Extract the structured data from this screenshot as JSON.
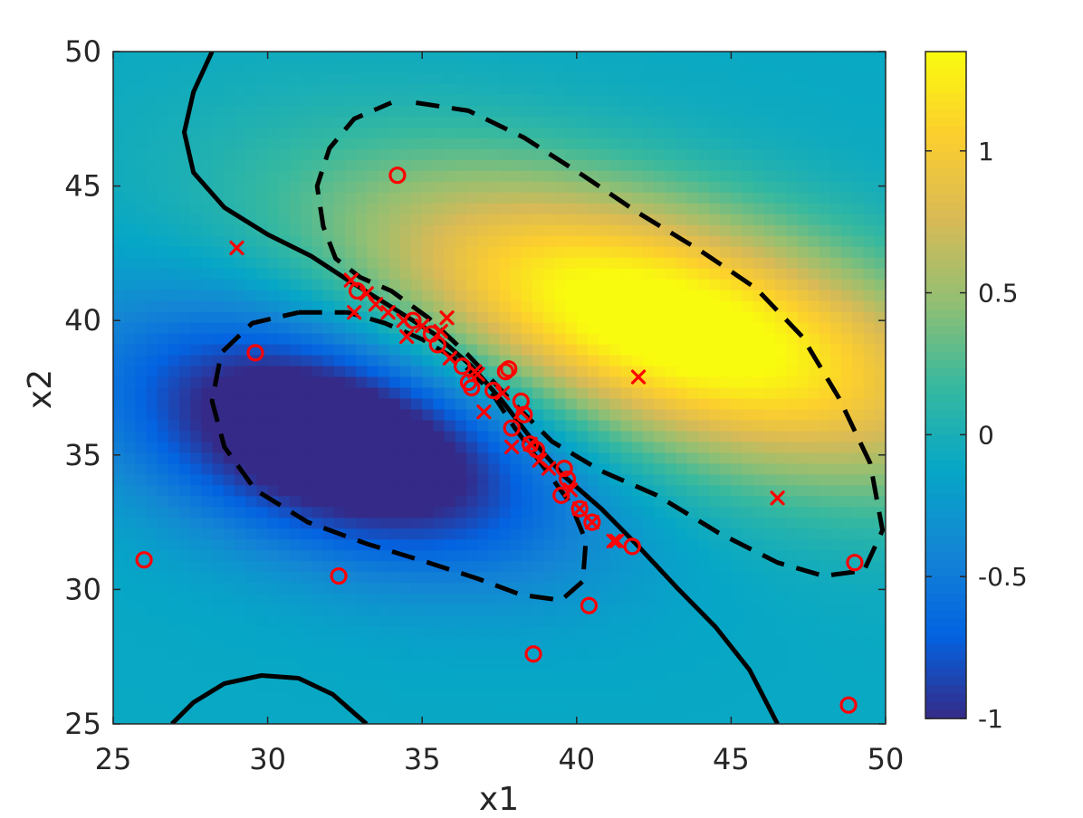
{
  "chart_data": {
    "type": "heatmap",
    "title": "",
    "xlabel": "x1",
    "ylabel": "x2",
    "xlim": [
      25,
      50
    ],
    "ylim": [
      25,
      50
    ],
    "x_ticks": [
      "25",
      "30",
      "35",
      "40",
      "45",
      "50"
    ],
    "y_ticks": [
      "25",
      "30",
      "35",
      "40",
      "45",
      "50"
    ],
    "colorbar": {
      "range": [
        -1,
        1.35
      ],
      "ticks": [
        "-1",
        "-0.5",
        "0",
        "0.5",
        "1"
      ],
      "colormap": "parula",
      "colors": [
        "#352a87",
        "#0363e1",
        "#1485d4",
        "#06a7c6",
        "#38b99e",
        "#92bf73",
        "#d9ba56",
        "#fcce2e",
        "#f9fb0e"
      ]
    },
    "field": {
      "description_components": [
        {
          "cx": 43.0,
          "cy": 39.8,
          "sx": 7.0,
          "sy": 3.8,
          "rho": -0.55,
          "amp": 1.65
        },
        {
          "cx": 32.3,
          "cy": 35.6,
          "sx": 5.0,
          "sy": 3.2,
          "rho": -0.4,
          "amp": -1.35
        }
      ],
      "offset": -0.1
    },
    "contours": [
      {
        "level": 0,
        "style": "solid",
        "color": "#000000",
        "points": [
          [
            28.2,
            50
          ],
          [
            27.6,
            48.5
          ],
          [
            27.3,
            47
          ],
          [
            27.6,
            45.5
          ],
          [
            28.6,
            44.2
          ],
          [
            30,
            43.2
          ],
          [
            31.4,
            42.4
          ],
          [
            32.6,
            41.5
          ],
          [
            34,
            40.5
          ],
          [
            35.4,
            39.5
          ],
          [
            36.6,
            38.3
          ],
          [
            37.6,
            37
          ],
          [
            38.6,
            35.5
          ],
          [
            39.6,
            34.2
          ],
          [
            40.8,
            33
          ],
          [
            42,
            31.6
          ],
          [
            43.3,
            30
          ],
          [
            44.5,
            28.6
          ],
          [
            45.6,
            27
          ],
          [
            46.5,
            25
          ]
        ]
      },
      {
        "level": 0,
        "style": "solid",
        "color": "#000000",
        "points": [
          [
            26.9,
            25
          ],
          [
            27.6,
            25.8
          ],
          [
            28.6,
            26.5
          ],
          [
            29.8,
            26.8
          ],
          [
            31,
            26.7
          ],
          [
            32.1,
            26.1
          ],
          [
            33.2,
            25
          ]
        ]
      },
      {
        "level": 0.8,
        "style": "dashed",
        "color": "#000000",
        "points": [
          [
            34.8,
            48.1
          ],
          [
            36.5,
            47.8
          ],
          [
            38.3,
            46.8
          ],
          [
            40.2,
            45.4
          ],
          [
            42,
            44.0
          ],
          [
            44,
            42.6
          ],
          [
            45.8,
            41.2
          ],
          [
            47.3,
            39.4
          ],
          [
            48.5,
            37.1
          ],
          [
            49.5,
            34.7
          ],
          [
            49.9,
            32.2
          ],
          [
            49.3,
            30.7
          ],
          [
            48,
            30.5
          ],
          [
            46.5,
            31.0
          ],
          [
            44.6,
            32.1
          ],
          [
            42.6,
            33.5
          ],
          [
            40.8,
            34.4
          ],
          [
            39.2,
            35.5
          ],
          [
            37.9,
            37
          ],
          [
            36.5,
            38.7
          ],
          [
            35.2,
            40.1
          ],
          [
            34.0,
            41.1
          ],
          [
            33.0,
            41.6
          ],
          [
            32.2,
            42.3
          ],
          [
            31.8,
            43.5
          ],
          [
            31.6,
            45
          ],
          [
            32.0,
            46.4
          ],
          [
            32.8,
            47.5
          ],
          [
            34.0,
            48.1
          ]
        ]
      },
      {
        "level": -0.5,
        "style": "dashed",
        "color": "#000000",
        "points": [
          [
            31,
            40.3
          ],
          [
            32.6,
            40.3
          ],
          [
            33.8,
            39.9
          ],
          [
            35,
            39.3
          ],
          [
            36.2,
            38.5
          ],
          [
            37.2,
            37.4
          ],
          [
            38,
            36.0
          ],
          [
            38.9,
            34.6
          ],
          [
            39.8,
            33.2
          ],
          [
            40.3,
            31.8
          ],
          [
            40.2,
            30.3
          ],
          [
            39.5,
            29.6
          ],
          [
            38.2,
            29.8
          ],
          [
            36.8,
            30.4
          ],
          [
            35.2,
            31.0
          ],
          [
            33.2,
            31.7
          ],
          [
            31.3,
            32.5
          ],
          [
            29.6,
            33.7
          ],
          [
            28.6,
            35.3
          ],
          [
            28.2,
            37.0
          ],
          [
            28.5,
            38.8
          ],
          [
            29.5,
            39.9
          ],
          [
            31,
            40.3
          ]
        ]
      }
    ],
    "series": [
      {
        "name": "",
        "marker": "o",
        "color": "#ff0000",
        "x": [
          34.2,
          26,
          29.6,
          32.3,
          38.6,
          40.4,
          48.8,
          49,
          41.8,
          34.7,
          35.3,
          35.5,
          36.5,
          36.6,
          37.7,
          37.8,
          37.9,
          38.3,
          38.5,
          38.7,
          39.6,
          39.7,
          39.5,
          40.1,
          40.5,
          32.9,
          36.3,
          37.3,
          38.2
        ],
        "y": [
          45.4,
          31.1,
          38.8,
          30.5,
          27.6,
          29.4,
          25.7,
          31.0,
          31.6,
          40.0,
          39.5,
          39.1,
          37.7,
          37.5,
          38.1,
          38.2,
          36.0,
          36.5,
          35.4,
          35.2,
          34.5,
          34.1,
          33.5,
          33.0,
          32.5,
          41.1,
          38.3,
          37.4,
          37.0
        ]
      },
      {
        "name": "",
        "marker": "x",
        "color": "#ff0000",
        "x": [
          29,
          42,
          46.5,
          41.3,
          32.7,
          32.8,
          33.5,
          33.9,
          34.4,
          34.5,
          35.0,
          35.8,
          35.9,
          36.8,
          37.0,
          37.6,
          37.9,
          38.2,
          38.5,
          38.8,
          39.1,
          39.8,
          40.1,
          40.5,
          41.2,
          36.7,
          33.2,
          35.6
        ],
        "y": [
          42.7,
          37.9,
          33.4,
          31.8,
          41.5,
          40.3,
          40.6,
          40.3,
          40.0,
          39.4,
          39.8,
          40.1,
          38.6,
          38.0,
          36.6,
          37.3,
          35.3,
          36.6,
          35.4,
          34.8,
          34.5,
          33.7,
          33.0,
          32.5,
          31.8,
          38.1,
          41.0,
          39.6
        ]
      }
    ]
  }
}
